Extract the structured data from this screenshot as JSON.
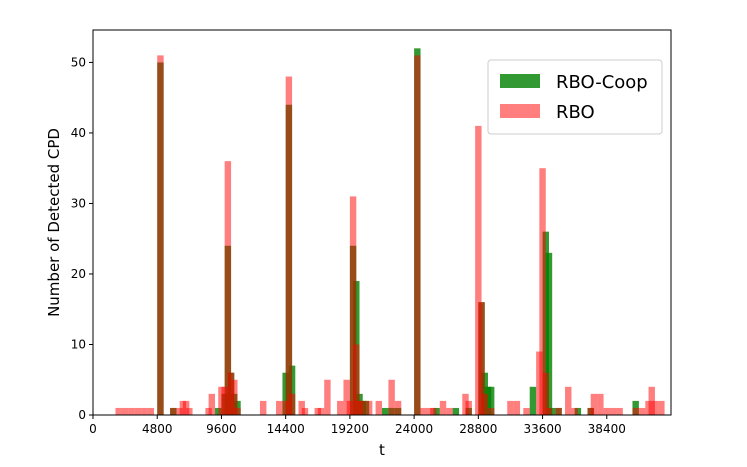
{
  "chart_data": {
    "type": "bar",
    "title": "",
    "xlabel": "t",
    "ylabel": "Number of Detected CPD",
    "xlim": [
      0,
      43200
    ],
    "ylim": [
      0,
      54.6
    ],
    "bin_width": 480,
    "xticks": [
      0,
      4800,
      9600,
      14400,
      19200,
      24000,
      28800,
      33600,
      38400
    ],
    "yticks": [
      0,
      10,
      20,
      30,
      40,
      50
    ],
    "legend_position": "top-right",
    "series": [
      {
        "name": "RBO-Coop",
        "color": "#008000",
        "opacity": 0.8,
        "bins": [
          {
            "x": 4800,
            "y": 50
          },
          {
            "x": 5760,
            "y": 1
          },
          {
            "x": 9120,
            "y": 1
          },
          {
            "x": 9600,
            "y": 3
          },
          {
            "x": 9840,
            "y": 24
          },
          {
            "x": 10080,
            "y": 6
          },
          {
            "x": 10320,
            "y": 3
          },
          {
            "x": 10560,
            "y": 2
          },
          {
            "x": 14160,
            "y": 6
          },
          {
            "x": 14400,
            "y": 44
          },
          {
            "x": 14640,
            "y": 7
          },
          {
            "x": 19200,
            "y": 24
          },
          {
            "x": 19440,
            "y": 19
          },
          {
            "x": 19680,
            "y": 3
          },
          {
            "x": 19920,
            "y": 2
          },
          {
            "x": 20160,
            "y": 2
          },
          {
            "x": 21600,
            "y": 1
          },
          {
            "x": 22080,
            "y": 1
          },
          {
            "x": 22560,
            "y": 1
          },
          {
            "x": 24000,
            "y": 52
          },
          {
            "x": 25440,
            "y": 1
          },
          {
            "x": 26880,
            "y": 1
          },
          {
            "x": 27840,
            "y": 1
          },
          {
            "x": 28800,
            "y": 16
          },
          {
            "x": 29040,
            "y": 6
          },
          {
            "x": 29280,
            "y": 4
          },
          {
            "x": 29520,
            "y": 4
          },
          {
            "x": 32640,
            "y": 4
          },
          {
            "x": 33600,
            "y": 26
          },
          {
            "x": 33840,
            "y": 23
          },
          {
            "x": 34080,
            "y": 1
          },
          {
            "x": 34560,
            "y": 1
          },
          {
            "x": 36000,
            "y": 1
          },
          {
            "x": 36960,
            "y": 1
          },
          {
            "x": 40320,
            "y": 2
          }
        ]
      },
      {
        "name": "RBO",
        "color": "#ff0000",
        "opacity": 0.5,
        "bins": [
          {
            "x": 1680,
            "y": 1
          },
          {
            "x": 2160,
            "y": 1
          },
          {
            "x": 2640,
            "y": 1
          },
          {
            "x": 3120,
            "y": 1
          },
          {
            "x": 3600,
            "y": 1
          },
          {
            "x": 4080,
            "y": 1
          },
          {
            "x": 4800,
            "y": 51
          },
          {
            "x": 5760,
            "y": 1
          },
          {
            "x": 6240,
            "y": 1
          },
          {
            "x": 6480,
            "y": 2
          },
          {
            "x": 6720,
            "y": 2
          },
          {
            "x": 6960,
            "y": 1
          },
          {
            "x": 8400,
            "y": 1
          },
          {
            "x": 8640,
            "y": 3
          },
          {
            "x": 9360,
            "y": 4
          },
          {
            "x": 9600,
            "y": 4
          },
          {
            "x": 9840,
            "y": 36
          },
          {
            "x": 10080,
            "y": 6
          },
          {
            "x": 10320,
            "y": 5
          },
          {
            "x": 10560,
            "y": 1
          },
          {
            "x": 12480,
            "y": 2
          },
          {
            "x": 13680,
            "y": 2
          },
          {
            "x": 14160,
            "y": 2
          },
          {
            "x": 14400,
            "y": 48
          },
          {
            "x": 14640,
            "y": 3
          },
          {
            "x": 15360,
            "y": 2
          },
          {
            "x": 15600,
            "y": 1
          },
          {
            "x": 16560,
            "y": 1
          },
          {
            "x": 16800,
            "y": 1
          },
          {
            "x": 17280,
            "y": 5
          },
          {
            "x": 18240,
            "y": 2
          },
          {
            "x": 18720,
            "y": 5
          },
          {
            "x": 18960,
            "y": 2
          },
          {
            "x": 19200,
            "y": 31
          },
          {
            "x": 19440,
            "y": 10
          },
          {
            "x": 19680,
            "y": 2
          },
          {
            "x": 19920,
            "y": 2
          },
          {
            "x": 20400,
            "y": 2
          },
          {
            "x": 21120,
            "y": 2
          },
          {
            "x": 22080,
            "y": 5
          },
          {
            "x": 22560,
            "y": 2
          },
          {
            "x": 24000,
            "y": 51
          },
          {
            "x": 24480,
            "y": 1
          },
          {
            "x": 24960,
            "y": 1
          },
          {
            "x": 25200,
            "y": 1
          },
          {
            "x": 25920,
            "y": 2
          },
          {
            "x": 26400,
            "y": 1
          },
          {
            "x": 27600,
            "y": 3
          },
          {
            "x": 27840,
            "y": 2
          },
          {
            "x": 28560,
            "y": 41
          },
          {
            "x": 28800,
            "y": 16
          },
          {
            "x": 29040,
            "y": 3
          },
          {
            "x": 29520,
            "y": 1
          },
          {
            "x": 30960,
            "y": 2
          },
          {
            "x": 31440,
            "y": 2
          },
          {
            "x": 32160,
            "y": 1
          },
          {
            "x": 33120,
            "y": 9
          },
          {
            "x": 33360,
            "y": 35
          },
          {
            "x": 33600,
            "y": 6
          },
          {
            "x": 33840,
            "y": 1
          },
          {
            "x": 34560,
            "y": 1
          },
          {
            "x": 35280,
            "y": 4
          },
          {
            "x": 35760,
            "y": 1
          },
          {
            "x": 36960,
            "y": 1
          },
          {
            "x": 37200,
            "y": 3
          },
          {
            "x": 37680,
            "y": 3
          },
          {
            "x": 38160,
            "y": 1
          },
          {
            "x": 38640,
            "y": 1
          },
          {
            "x": 39120,
            "y": 1
          },
          {
            "x": 40320,
            "y": 1
          },
          {
            "x": 40800,
            "y": 1
          },
          {
            "x": 41280,
            "y": 2
          },
          {
            "x": 41520,
            "y": 4
          },
          {
            "x": 41760,
            "y": 2
          },
          {
            "x": 42240,
            "y": 2
          }
        ]
      }
    ]
  }
}
